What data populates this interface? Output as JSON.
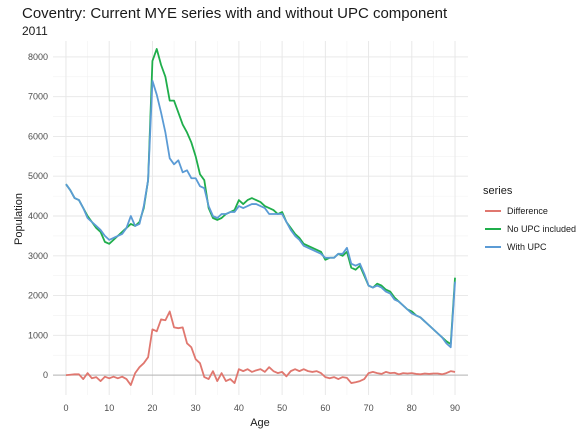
{
  "chart_data": {
    "type": "line",
    "title": "Coventry: Current MYE series with and without UPC component",
    "subtitle": "2011",
    "xlabel": "Age",
    "ylabel": "Population",
    "xlim": [
      -3,
      93
    ],
    "ylim": [
      -500,
      8400
    ],
    "x_ticks": [
      0,
      10,
      20,
      30,
      40,
      50,
      60,
      70,
      80,
      90
    ],
    "y_ticks": [
      0,
      1000,
      2000,
      3000,
      4000,
      5000,
      6000,
      7000,
      8000
    ],
    "grid": true,
    "legend": {
      "title": "series",
      "position": "right"
    },
    "x": [
      0,
      1,
      2,
      3,
      4,
      5,
      6,
      7,
      8,
      9,
      10,
      11,
      12,
      13,
      14,
      15,
      16,
      17,
      18,
      19,
      20,
      21,
      22,
      23,
      24,
      25,
      26,
      27,
      28,
      29,
      30,
      31,
      32,
      33,
      34,
      35,
      36,
      37,
      38,
      39,
      40,
      41,
      42,
      43,
      44,
      45,
      46,
      47,
      48,
      49,
      50,
      51,
      52,
      53,
      54,
      55,
      56,
      57,
      58,
      59,
      60,
      61,
      62,
      63,
      64,
      65,
      66,
      67,
      68,
      69,
      70,
      71,
      72,
      73,
      74,
      75,
      76,
      77,
      78,
      79,
      80,
      81,
      82,
      83,
      84,
      85,
      86,
      87,
      88,
      89,
      90
    ],
    "series": [
      {
        "name": "Difference",
        "color": "#E0776F",
        "values": [
          0,
          10,
          20,
          20,
          -100,
          50,
          -80,
          -50,
          -150,
          -40,
          -80,
          -40,
          -80,
          -40,
          -100,
          -250,
          50,
          200,
          300,
          450,
          1150,
          1100,
          1400,
          1380,
          1600,
          1200,
          1180,
          1200,
          800,
          700,
          400,
          300,
          -50,
          -100,
          100,
          -150,
          50,
          -150,
          -100,
          -200,
          150,
          100,
          150,
          80,
          120,
          150,
          80,
          200,
          100,
          50,
          80,
          -30,
          100,
          150,
          100,
          150,
          100,
          80,
          100,
          50,
          -50,
          -80,
          -50,
          -100,
          -50,
          -70,
          -200,
          -180,
          -150,
          -100,
          50,
          80,
          50,
          30,
          80,
          50,
          60,
          20,
          50,
          40,
          50,
          30,
          20,
          40,
          30,
          40,
          40,
          20,
          50,
          100,
          80
        ]
      },
      {
        "name": "No UPC included",
        "color": "#1FAE4B",
        "values": [
          4800,
          4650,
          4450,
          4400,
          4200,
          4000,
          3850,
          3700,
          3600,
          3350,
          3300,
          3400,
          3500,
          3600,
          3700,
          3800,
          3750,
          3850,
          4200,
          4900,
          7900,
          8200,
          7800,
          7500,
          6900,
          6900,
          6600,
          6300,
          6100,
          5850,
          5500,
          5050,
          4900,
          4200,
          3950,
          3900,
          3950,
          4050,
          4100,
          4150,
          4400,
          4300,
          4400,
          4450,
          4400,
          4350,
          4250,
          4200,
          4150,
          4050,
          4100,
          3850,
          3700,
          3550,
          3450,
          3300,
          3250,
          3200,
          3150,
          3100,
          2900,
          2950,
          2950,
          3050,
          3000,
          3100,
          2700,
          2650,
          2750,
          2500,
          2250,
          2200,
          2300,
          2250,
          2150,
          2100,
          1950,
          1850,
          1750,
          1650,
          1600,
          1500,
          1450,
          1350,
          1250,
          1150,
          1050,
          950,
          850,
          780,
          2450
        ]
      },
      {
        "name": "With UPC",
        "color": "#5B9BD5",
        "values": [
          4800,
          4650,
          4450,
          4400,
          4200,
          3950,
          3850,
          3750,
          3650,
          3500,
          3400,
          3450,
          3500,
          3550,
          3700,
          4000,
          3750,
          3800,
          4250,
          4900,
          7400,
          7050,
          6600,
          6100,
          5450,
          5300,
          5400,
          5100,
          5150,
          4950,
          4950,
          4750,
          4700,
          4250,
          4000,
          3950,
          4050,
          4050,
          4100,
          4100,
          4250,
          4200,
          4250,
          4300,
          4300,
          4250,
          4200,
          4050,
          4050,
          4050,
          4050,
          3850,
          3650,
          3500,
          3400,
          3250,
          3200,
          3150,
          3100,
          3050,
          2950,
          2950,
          2950,
          3050,
          3050,
          3200,
          2800,
          2750,
          2800,
          2550,
          2250,
          2200,
          2250,
          2200,
          2100,
          2050,
          1900,
          1850,
          1750,
          1650,
          1550,
          1500,
          1450,
          1350,
          1250,
          1150,
          1050,
          950,
          800,
          700,
          2350
        ]
      }
    ]
  }
}
